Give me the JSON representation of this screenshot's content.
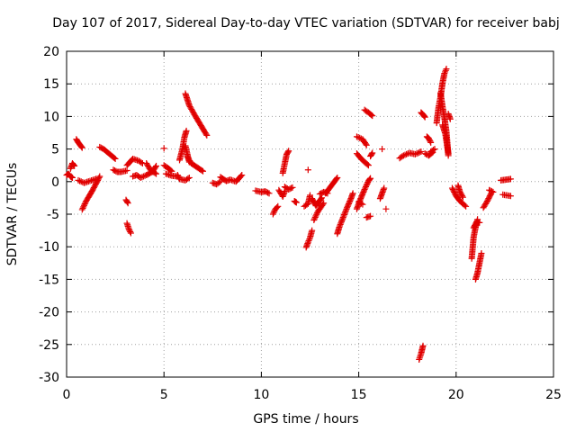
{
  "chart_data": {
    "type": "scatter",
    "title": "Day 107 of 2017, Sidereal Day-to-day VTEC variation (SDTVAR) for receiver babj",
    "xlabel": "GPS time / hours",
    "ylabel": "SDTVAR / TECUs",
    "xlim": [
      0,
      25
    ],
    "ylim": [
      -30,
      20
    ],
    "xticks": [
      0,
      5,
      10,
      15,
      20,
      25
    ],
    "yticks": [
      -30,
      -25,
      -20,
      -15,
      -10,
      -5,
      0,
      5,
      10,
      15,
      20
    ],
    "grid": true,
    "marker": "+",
    "color": "#e00000",
    "segments": [
      {
        "x": [
          0.0,
          0.1,
          0.2,
          0.3
        ],
        "y": [
          1.0,
          1.2,
          0.8,
          0.6
        ]
      },
      {
        "x": [
          0.2,
          0.3,
          0.4
        ],
        "y": [
          2.0,
          2.8,
          2.4
        ]
      },
      {
        "x": [
          0.5,
          0.6,
          0.7,
          0.8
        ],
        "y": [
          6.5,
          6.0,
          5.6,
          5.2
        ]
      },
      {
        "x": [
          0.6,
          0.9,
          1.2,
          1.5
        ],
        "y": [
          0.2,
          -0.2,
          0.1,
          0.4
        ]
      },
      {
        "x": [
          0.8,
          1.0,
          1.3,
          1.6,
          1.7
        ],
        "y": [
          -4.3,
          -3.0,
          -1.5,
          0.2,
          0.8
        ]
      },
      {
        "x": [
          1.7,
          1.9,
          2.1,
          2.3,
          2.5
        ],
        "y": [
          5.3,
          5.0,
          4.5,
          4.0,
          3.5
        ]
      },
      {
        "x": [
          2.4,
          2.6,
          2.8,
          3.1
        ],
        "y": [
          1.8,
          1.5,
          1.5,
          1.7
        ]
      },
      {
        "x": [
          3.1,
          3.2,
          3.3
        ],
        "y": [
          -6.4,
          -7.3,
          -7.9
        ]
      },
      {
        "x": [
          3.05,
          3.15
        ],
        "y": [
          -2.8,
          -3.3
        ]
      },
      {
        "x": [
          3.1,
          3.4,
          3.7,
          3.9
        ],
        "y": [
          2.5,
          3.5,
          3.2,
          2.8
        ]
      },
      {
        "x": [
          3.4,
          3.6,
          3.8,
          4.1,
          4.4,
          4.6
        ],
        "y": [
          0.8,
          1.0,
          0.6,
          1.0,
          1.5,
          2.4
        ]
      },
      {
        "x": [
          4.1,
          4.3,
          4.6
        ],
        "y": [
          2.8,
          1.8,
          1.2
        ]
      },
      {
        "x": [
          5.0
        ],
        "y": [
          5.1
        ]
      },
      {
        "x": [
          5.0,
          5.2,
          5.4
        ],
        "y": [
          2.5,
          2.1,
          1.6
        ]
      },
      {
        "x": [
          5.1,
          5.4,
          5.7
        ],
        "y": [
          1.2,
          0.9,
          0.8
        ]
      },
      {
        "x": [
          5.7,
          5.8,
          6.1,
          6.3
        ],
        "y": [
          1.0,
          0.4,
          0.2,
          0.6
        ]
      },
      {
        "x": [
          5.8,
          5.95,
          6.05,
          6.15
        ],
        "y": [
          3.3,
          5.0,
          6.8,
          7.8
        ]
      },
      {
        "x": [
          6.1,
          6.2,
          6.3
        ],
        "y": [
          5.5,
          4.2,
          3.0
        ]
      },
      {
        "x": [
          6.1,
          6.3,
          6.6,
          6.9,
          7.2
        ],
        "y": [
          13.5,
          11.7,
          10.1,
          8.6,
          7.1
        ]
      },
      {
        "x": [
          6.2,
          6.4,
          6.7,
          7.0
        ],
        "y": [
          3.8,
          2.8,
          2.2,
          1.6
        ]
      },
      {
        "x": [
          7.5,
          7.7,
          7.9
        ],
        "y": [
          -0.2,
          -0.4,
          0.0
        ]
      },
      {
        "x": [
          7.9,
          8.2,
          8.4,
          8.7,
          9.0
        ],
        "y": [
          0.7,
          0.1,
          0.3,
          0.0,
          1.0
        ]
      },
      {
        "x": [
          9.7,
          10.0,
          10.2,
          10.4
        ],
        "y": [
          -1.4,
          -1.6,
          -1.5,
          -1.8
        ]
      },
      {
        "x": [
          10.6,
          10.7,
          10.85
        ],
        "y": [
          -5.0,
          -4.3,
          -3.8
        ]
      },
      {
        "x": [
          10.9,
          11.1,
          11.2
        ],
        "y": [
          -1.3,
          -2.3,
          -1.5
        ]
      },
      {
        "x": [
          11.1,
          11.3,
          11.4
        ],
        "y": [
          1.3,
          4.2,
          4.7
        ]
      },
      {
        "x": [
          11.2,
          11.4,
          11.6
        ],
        "y": [
          -0.8,
          -1.2,
          -0.9
        ]
      },
      {
        "x": [
          11.7,
          11.8
        ],
        "y": [
          -3.0,
          -3.2
        ]
      },
      {
        "x": [
          12.2,
          12.4,
          12.5
        ],
        "y": [
          -3.8,
          -3.4,
          -2.1
        ]
      },
      {
        "x": [
          12.3,
          12.4,
          12.5,
          12.6
        ],
        "y": [
          -10.1,
          -9.3,
          -8.6,
          -7.5
        ]
      },
      {
        "x": [
          12.4
        ],
        "y": [
          1.8
        ]
      },
      {
        "x": [
          12.6,
          12.8,
          13.1
        ],
        "y": [
          -2.6,
          -3.7,
          -2.5
        ]
      },
      {
        "x": [
          12.7,
          12.9,
          13.2
        ],
        "y": [
          -5.9,
          -4.6,
          -3.3
        ]
      },
      {
        "x": [
          13.0,
          13.2,
          13.4
        ],
        "y": [
          -1.9,
          -1.6,
          -1.8
        ]
      },
      {
        "x": [
          13.3,
          13.5,
          13.7,
          13.9
        ],
        "y": [
          -1.8,
          -1.0,
          -0.2,
          0.6
        ]
      },
      {
        "x": [
          13.9,
          14.0,
          14.2,
          14.4,
          14.6,
          14.7
        ],
        "y": [
          -8.0,
          -7.0,
          -5.5,
          -4.0,
          -2.6,
          -1.8
        ]
      },
      {
        "x": [
          14.9,
          15.1,
          15.3,
          15.5,
          15.6
        ],
        "y": [
          -4.2,
          -2.6,
          -1.2,
          0.1,
          0.5
        ]
      },
      {
        "x": [
          14.9,
          15.2,
          15.4
        ],
        "y": [
          6.9,
          6.5,
          5.6
        ]
      },
      {
        "x": [
          14.9,
          15.1,
          15.3,
          15.5
        ],
        "y": [
          4.3,
          3.6,
          3.0,
          2.5
        ]
      },
      {
        "x": [
          15.0,
          15.2
        ],
        "y": [
          -3.1,
          -3.5
        ]
      },
      {
        "x": [
          15.3,
          15.5,
          15.7
        ],
        "y": [
          11.0,
          10.6,
          10.1
        ]
      },
      {
        "x": [
          15.4,
          15.6
        ],
        "y": [
          -5.5,
          -5.3
        ]
      },
      {
        "x": [
          15.6,
          15.7
        ],
        "y": [
          3.9,
          4.4
        ]
      },
      {
        "x": [
          16.1,
          16.3
        ],
        "y": [
          -2.6,
          -1.0
        ]
      },
      {
        "x": [
          16.4
        ],
        "y": [
          -4.2
        ]
      },
      {
        "x": [
          16.2
        ],
        "y": [
          5.0
        ]
      },
      {
        "x": [
          17.1,
          17.3,
          17.6,
          17.9,
          18.2
        ],
        "y": [
          3.6,
          4.0,
          4.4,
          4.2,
          4.6
        ]
      },
      {
        "x": [
          18.1,
          18.2,
          18.3
        ],
        "y": [
          -27.3,
          -26.4,
          -25.2
        ]
      },
      {
        "x": [
          18.2,
          18.3,
          18.4
        ],
        "y": [
          10.6,
          10.3,
          9.9
        ]
      },
      {
        "x": [
          18.4,
          18.6,
          18.8
        ],
        "y": [
          4.3,
          4.0,
          4.5
        ]
      },
      {
        "x": [
          18.5,
          18.6,
          18.7
        ],
        "y": [
          6.9,
          6.6,
          6.0
        ]
      },
      {
        "x": [
          18.7,
          18.9
        ],
        "y": [
          4.6,
          5.0
        ]
      },
      {
        "x": [
          19.0,
          19.1,
          19.2,
          19.3,
          19.4,
          19.5
        ],
        "y": [
          9.0,
          11.4,
          13.0,
          15.1,
          16.6,
          17.3
        ]
      },
      {
        "x": [
          19.2,
          19.3,
          19.4,
          19.5,
          19.6
        ],
        "y": [
          13.6,
          11.5,
          9.8,
          7.7,
          4.0
        ]
      },
      {
        "x": [
          19.3,
          19.45,
          19.6
        ],
        "y": [
          8.7,
          7.3,
          4.3
        ]
      },
      {
        "x": [
          19.6,
          19.7
        ],
        "y": [
          10.4,
          9.6
        ]
      },
      {
        "x": [
          19.8,
          20.0,
          20.2,
          20.5
        ],
        "y": [
          -1.0,
          -2.2,
          -3.0,
          -3.8
        ]
      },
      {
        "x": [
          20.1,
          20.2,
          20.35
        ],
        "y": [
          -0.6,
          -1.6,
          -2.4
        ]
      },
      {
        "x": [
          20.8,
          20.9,
          21.0,
          21.1
        ],
        "y": [
          -11.8,
          -8.5,
          -7.0,
          -5.8
        ]
      },
      {
        "x": [
          20.9,
          21.05,
          21.2
        ],
        "y": [
          -7.1,
          -6.2,
          -6.3
        ]
      },
      {
        "x": [
          21.0,
          21.1,
          21.2,
          21.3
        ],
        "y": [
          -15.0,
          -14.0,
          -12.5,
          -11.0
        ]
      },
      {
        "x": [
          21.4,
          21.6,
          21.8
        ],
        "y": [
          -4.0,
          -3.0,
          -1.8
        ]
      },
      {
        "x": [
          21.7,
          21.9
        ],
        "y": [
          -1.3,
          -1.6
        ]
      },
      {
        "x": [
          22.3,
          22.8
        ],
        "y": [
          0.2,
          0.4
        ]
      },
      {
        "x": [
          22.4,
          22.8
        ],
        "y": [
          -2.0,
          -2.2
        ]
      }
    ]
  }
}
